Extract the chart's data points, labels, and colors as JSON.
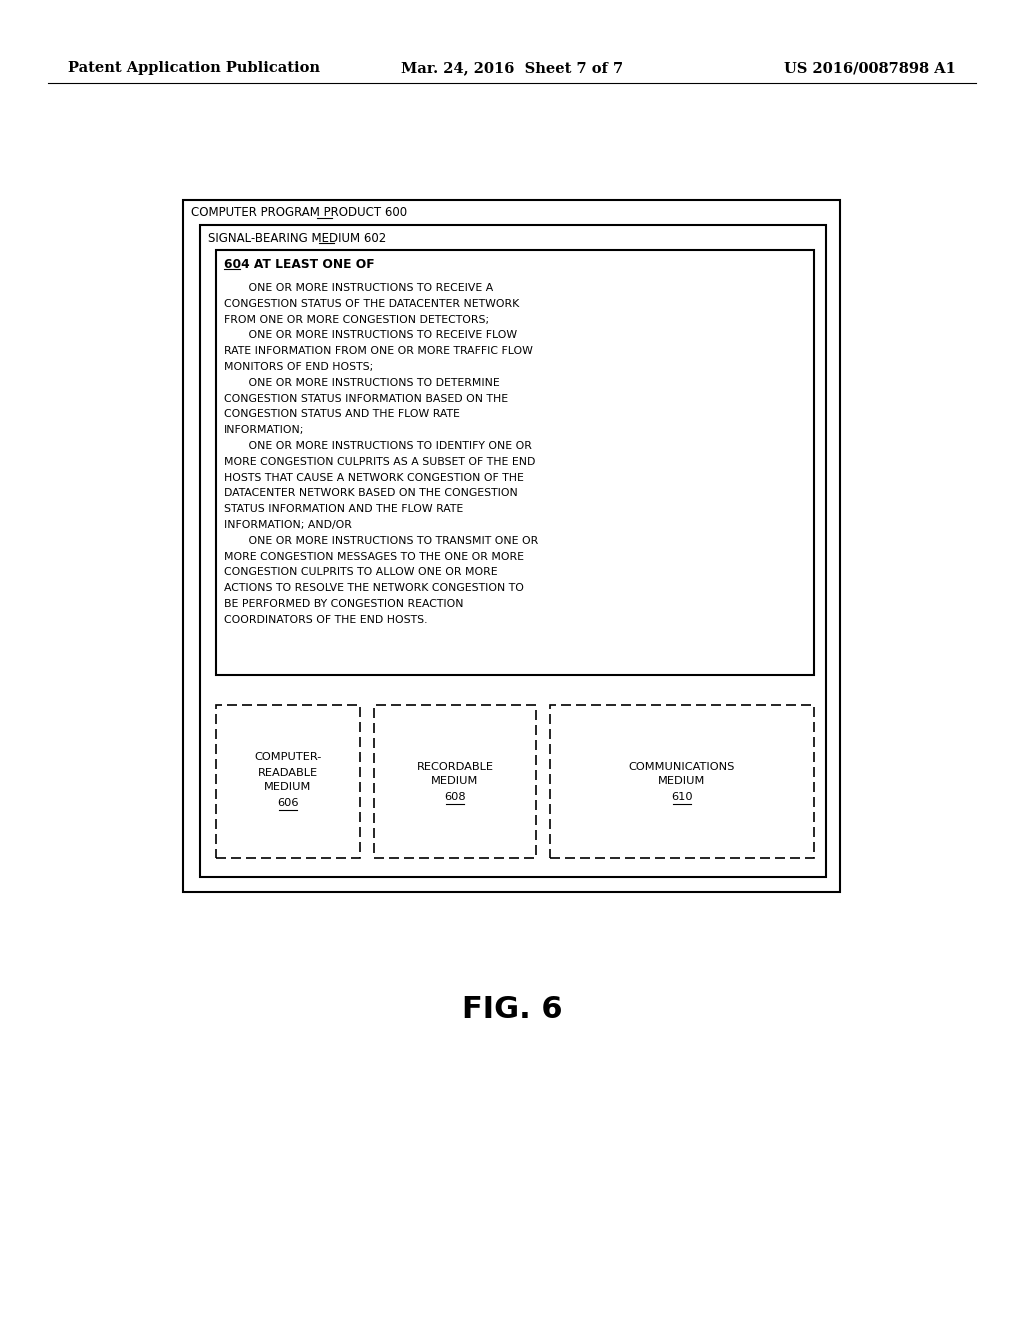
{
  "bg_color": "#ffffff",
  "header_left": "Patent Application Publication",
  "header_center": "Mar. 24, 2016  Sheet 7 of 7",
  "header_right": "US 2016/0087898 A1",
  "fig_label": "FIG. 6",
  "outer_box_label_pre": "COMPUTER PROGRAM PRODUCT ",
  "outer_box_label_num": "600",
  "signal_box_label_pre": "SIGNAL-BEARING MEDIUM ",
  "signal_box_label_num": "602",
  "inner_box_label_num": "604",
  "inner_box_label_post": " AT LEAST ONE OF",
  "instructions_text": [
    "       ONE OR MORE INSTRUCTIONS TO RECEIVE A",
    "CONGESTION STATUS OF THE DATACENTER NETWORK",
    "FROM ONE OR MORE CONGESTION DETECTORS;",
    "       ONE OR MORE INSTRUCTIONS TO RECEIVE FLOW",
    "RATE INFORMATION FROM ONE OR MORE TRAFFIC FLOW",
    "MONITORS OF END HOSTS;",
    "       ONE OR MORE INSTRUCTIONS TO DETERMINE",
    "CONGESTION STATUS INFORMATION BASED ON THE",
    "CONGESTION STATUS AND THE FLOW RATE",
    "INFORMATION;",
    "       ONE OR MORE INSTRUCTIONS TO IDENTIFY ONE OR",
    "MORE CONGESTION CULPRITS AS A SUBSET OF THE END",
    "HOSTS THAT CAUSE A NETWORK CONGESTION OF THE",
    "DATACENTER NETWORK BASED ON THE CONGESTION",
    "STATUS INFORMATION AND THE FLOW RATE",
    "INFORMATION; AND/OR",
    "       ONE OR MORE INSTRUCTIONS TO TRANSMIT ONE OR",
    "MORE CONGESTION MESSAGES TO THE ONE OR MORE",
    "CONGESTION CULPRITS TO ALLOW ONE OR MORE",
    "ACTIONS TO RESOLVE THE NETWORK CONGESTION TO",
    "BE PERFORMED BY CONGESTION REACTION",
    "COORDINATORS OF THE END HOSTS."
  ],
  "box606_lines": [
    "COMPUTER-",
    "READABLE",
    "MEDIUM",
    "606"
  ],
  "box608_lines": [
    "RECORDABLE",
    "MEDIUM",
    "608"
  ],
  "box610_lines": [
    "COMMUNICATIONS",
    "MEDIUM",
    "610"
  ]
}
